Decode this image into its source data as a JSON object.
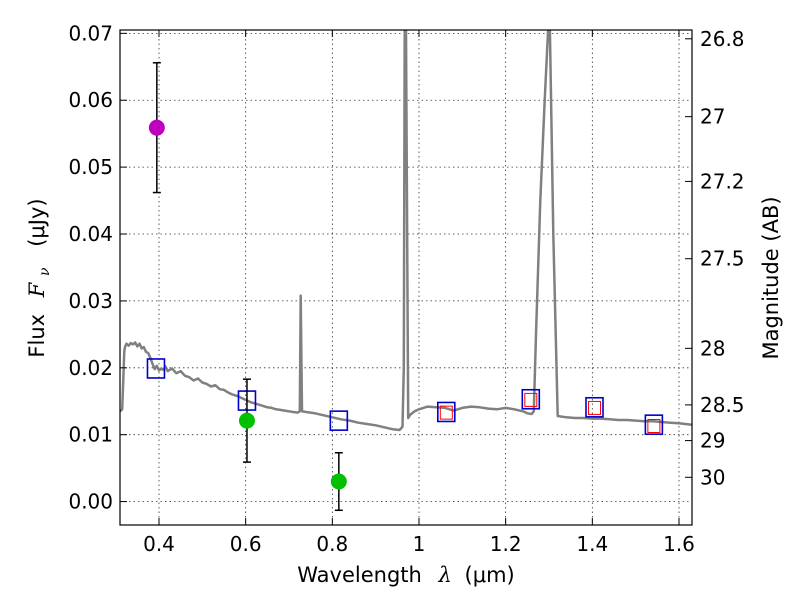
{
  "chart_data": {
    "type": "scatter",
    "x_label_text": "Wavelength",
    "x_label_unit": "(μm)",
    "y_label_text": "Flux",
    "y_label_unit": "(μJy)",
    "y_right_label": "Magnitude (AB)",
    "xlim": [
      0.31,
      1.63
    ],
    "ylim": [
      -0.0035,
      0.0705
    ],
    "x_ticks": [
      0.4,
      0.6,
      0.8,
      1.0,
      1.2,
      1.4,
      1.6
    ],
    "x_tick_labels": [
      "0.4",
      "0.6",
      "0.8",
      "1",
      "1.2",
      "1.4",
      "1.6"
    ],
    "y_ticks": [
      0.0,
      0.01,
      0.02,
      0.03,
      0.04,
      0.05,
      0.06,
      0.07
    ],
    "y_tick_labels": [
      "0.00",
      "0.01",
      "0.02",
      "0.03",
      "0.04",
      "0.05",
      "0.06",
      "0.07"
    ],
    "mag_ticks": [
      26.8,
      27.0,
      27.2,
      27.5,
      28.0,
      28.5,
      29.0,
      30.0
    ],
    "mag_tick_labels": [
      "26.8",
      "27",
      "27.2",
      "27.5",
      "28",
      "28.5",
      "29",
      "30"
    ],
    "grid": true,
    "colors": {
      "sed": "#808080",
      "observed_magenta": "#bf00bf",
      "observed_green": "#00c000",
      "model_box": "#0000cc",
      "model_inner": "#ff0000",
      "errorbar": "#000000"
    },
    "sed_model": {
      "x": [
        0.31,
        0.315,
        0.32,
        0.322,
        0.325,
        0.33,
        0.335,
        0.34,
        0.345,
        0.35,
        0.355,
        0.36,
        0.365,
        0.37,
        0.375,
        0.38,
        0.385,
        0.39,
        0.395,
        0.4,
        0.405,
        0.41,
        0.415,
        0.42,
        0.43,
        0.44,
        0.45,
        0.46,
        0.47,
        0.48,
        0.49,
        0.5,
        0.51,
        0.52,
        0.53,
        0.54,
        0.55,
        0.56,
        0.57,
        0.58,
        0.59,
        0.6,
        0.61,
        0.62,
        0.63,
        0.64,
        0.65,
        0.66,
        0.67,
        0.68,
        0.69,
        0.7,
        0.71,
        0.72,
        0.725,
        0.727,
        0.73,
        0.74,
        0.76,
        0.78,
        0.8,
        0.82,
        0.84,
        0.86,
        0.88,
        0.9,
        0.92,
        0.94,
        0.955,
        0.962,
        0.965,
        0.967,
        0.97,
        0.975,
        0.98,
        0.99,
        1.0,
        1.02,
        1.04,
        1.06,
        1.08,
        1.1,
        1.12,
        1.14,
        1.16,
        1.18,
        1.2,
        1.22,
        1.24,
        1.25,
        1.26,
        1.265,
        1.27,
        1.28,
        1.29,
        1.298,
        1.302,
        1.31,
        1.32,
        1.34,
        1.36,
        1.38,
        1.4,
        1.42,
        1.44,
        1.46,
        1.48,
        1.5,
        1.52,
        1.54,
        1.56,
        1.58,
        1.6,
        1.63
      ],
      "y": [
        0.0135,
        0.0138,
        0.0225,
        0.0232,
        0.0236,
        0.0233,
        0.0237,
        0.0235,
        0.0238,
        0.0232,
        0.0236,
        0.0229,
        0.0231,
        0.0224,
        0.0222,
        0.0215,
        0.0206,
        0.0198,
        0.0203,
        0.0196,
        0.0199,
        0.0197,
        0.0202,
        0.0195,
        0.0199,
        0.0192,
        0.0195,
        0.0188,
        0.0186,
        0.0181,
        0.0184,
        0.0178,
        0.0176,
        0.0172,
        0.0174,
        0.0168,
        0.0167,
        0.0163,
        0.016,
        0.0158,
        0.0155,
        0.0152,
        0.0149,
        0.0147,
        0.0145,
        0.0143,
        0.0141,
        0.014,
        0.0138,
        0.0137,
        0.0136,
        0.0135,
        0.0134,
        0.0133,
        0.0135,
        0.0308,
        0.0135,
        0.0134,
        0.0132,
        0.0129,
        0.0126,
        0.0123,
        0.0121,
        0.0118,
        0.0116,
        0.0114,
        0.0111,
        0.0108,
        0.0107,
        0.0112,
        0.02,
        0.0705,
        0.0705,
        0.0125,
        0.013,
        0.0135,
        0.0138,
        0.0142,
        0.0141,
        0.014,
        0.0136,
        0.014,
        0.0142,
        0.0141,
        0.0139,
        0.0138,
        0.014,
        0.0138,
        0.0135,
        0.0132,
        0.0131,
        0.0135,
        0.025,
        0.045,
        0.06,
        0.0705,
        0.0705,
        0.04,
        0.0128,
        0.0126,
        0.0125,
        0.0125,
        0.0124,
        0.0124,
        0.0123,
        0.0122,
        0.0122,
        0.0121,
        0.012,
        0.012,
        0.0119,
        0.0118,
        0.0117,
        0.0115
      ]
    },
    "observed": [
      {
        "x": 0.395,
        "y": 0.0559,
        "err": 0.0097,
        "color": "#bf00bf"
      },
      {
        "x": 0.603,
        "y": 0.0121,
        "err": 0.0062,
        "color": "#00c000"
      },
      {
        "x": 0.815,
        "y": 0.003,
        "err": 0.0043,
        "color": "#00c000"
      }
    ],
    "model_photometry": [
      {
        "x": 0.393,
        "y": 0.0199
      },
      {
        "x": 0.603,
        "y": 0.0151
      },
      {
        "x": 0.815,
        "y": 0.0121
      },
      {
        "x": 1.063,
        "y": 0.0134,
        "inner": 0.0133
      },
      {
        "x": 1.258,
        "y": 0.0153,
        "inner": 0.0152
      },
      {
        "x": 1.405,
        "y": 0.0141,
        "inner": 0.014
      },
      {
        "x": 1.542,
        "y": 0.0115,
        "inner": 0.0113
      }
    ]
  }
}
